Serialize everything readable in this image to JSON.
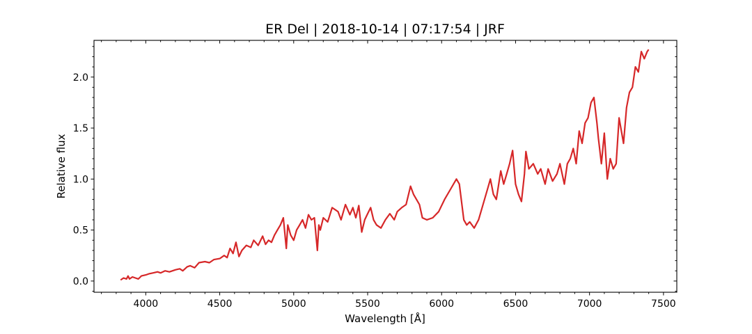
{
  "chart_data": {
    "type": "line",
    "title": "ER Del | 2018-10-14 | 07:17:54 | JRF",
    "xlabel": "Wavelength [Å]",
    "ylabel": "Relative flux",
    "xlim": [
      3650,
      7590
    ],
    "ylim": [
      -0.11,
      2.36
    ],
    "grid": false,
    "legend": "none",
    "color": "#d62728",
    "x_major_ticks": [
      4000,
      4500,
      5000,
      5500,
      6000,
      6500,
      7000,
      7500
    ],
    "x_tick_labels": [
      "4000",
      "4500",
      "5000",
      "5500",
      "6000",
      "6500",
      "7000",
      "7500"
    ],
    "y_major_ticks": [
      0.0,
      0.5,
      1.0,
      1.5,
      2.0
    ],
    "y_tick_labels": [
      "0.0",
      "0.5",
      "1.0",
      "1.5",
      "2.0"
    ],
    "x_minor_step": 100,
    "y_minor_step": 0.1,
    "series": [
      {
        "x": [
          3830,
          3850,
          3870,
          3880,
          3890,
          3910,
          3930,
          3950,
          3970,
          4000,
          4020,
          4050,
          4080,
          4100,
          4130,
          4160,
          4200,
          4230,
          4250,
          4280,
          4300,
          4330,
          4360,
          4400,
          4430,
          4460,
          4500,
          4530,
          4550,
          4570,
          4590,
          4610,
          4630,
          4650,
          4680,
          4710,
          4730,
          4760,
          4790,
          4810,
          4830,
          4850,
          4870,
          4890,
          4910,
          4930,
          4950,
          4960,
          4980,
          5000,
          5020,
          5040,
          5060,
          5080,
          5100,
          5120,
          5140,
          5160,
          5170,
          5180,
          5200,
          5230,
          5260,
          5280,
          5300,
          5320,
          5350,
          5380,
          5400,
          5420,
          5440,
          5460,
          5480,
          5500,
          5520,
          5540,
          5560,
          5590,
          5620,
          5650,
          5680,
          5700,
          5730,
          5760,
          5790,
          5810,
          5830,
          5850,
          5870,
          5900,
          5940,
          5980,
          6020,
          6060,
          6100,
          6120,
          6150,
          6170,
          6190,
          6220,
          6250,
          6280,
          6310,
          6330,
          6350,
          6370,
          6400,
          6420,
          6440,
          6460,
          6480,
          6500,
          6520,
          6540,
          6560,
          6570,
          6590,
          6620,
          6650,
          6670,
          6700,
          6720,
          6750,
          6780,
          6800,
          6830,
          6850,
          6870,
          6890,
          6910,
          6930,
          6950,
          6970,
          6990,
          7010,
          7030,
          7050,
          7060,
          7080,
          7100,
          7120,
          7140,
          7160,
          7180,
          7200,
          7230,
          7250,
          7270,
          7290,
          7310,
          7330,
          7350,
          7370,
          7390,
          7400
        ],
        "y": [
          0.01,
          0.03,
          0.02,
          0.05,
          0.02,
          0.04,
          0.03,
          0.02,
          0.05,
          0.06,
          0.07,
          0.08,
          0.09,
          0.08,
          0.1,
          0.09,
          0.11,
          0.12,
          0.1,
          0.14,
          0.15,
          0.13,
          0.18,
          0.19,
          0.18,
          0.21,
          0.22,
          0.25,
          0.23,
          0.32,
          0.27,
          0.38,
          0.24,
          0.3,
          0.35,
          0.33,
          0.4,
          0.35,
          0.44,
          0.36,
          0.4,
          0.38,
          0.45,
          0.5,
          0.55,
          0.62,
          0.32,
          0.55,
          0.45,
          0.4,
          0.5,
          0.55,
          0.6,
          0.52,
          0.65,
          0.6,
          0.62,
          0.3,
          0.55,
          0.5,
          0.62,
          0.58,
          0.72,
          0.7,
          0.68,
          0.6,
          0.75,
          0.65,
          0.72,
          0.62,
          0.74,
          0.48,
          0.6,
          0.66,
          0.72,
          0.6,
          0.55,
          0.52,
          0.6,
          0.66,
          0.6,
          0.68,
          0.72,
          0.75,
          0.93,
          0.85,
          0.8,
          0.75,
          0.62,
          0.6,
          0.62,
          0.68,
          0.8,
          0.9,
          1.0,
          0.95,
          0.6,
          0.55,
          0.58,
          0.52,
          0.6,
          0.75,
          0.9,
          1.0,
          0.85,
          0.8,
          1.08,
          0.95,
          1.05,
          1.15,
          1.28,
          0.95,
          0.85,
          0.78,
          1.05,
          1.27,
          1.1,
          1.15,
          1.05,
          1.1,
          0.95,
          1.1,
          0.98,
          1.05,
          1.15,
          0.95,
          1.15,
          1.2,
          1.3,
          1.15,
          1.47,
          1.35,
          1.55,
          1.6,
          1.75,
          1.8,
          1.55,
          1.4,
          1.15,
          1.45,
          1.0,
          1.2,
          1.1,
          1.15,
          1.6,
          1.35,
          1.7,
          1.85,
          1.9,
          2.1,
          2.05,
          2.25,
          2.18,
          2.25,
          2.27
        ]
      }
    ]
  }
}
